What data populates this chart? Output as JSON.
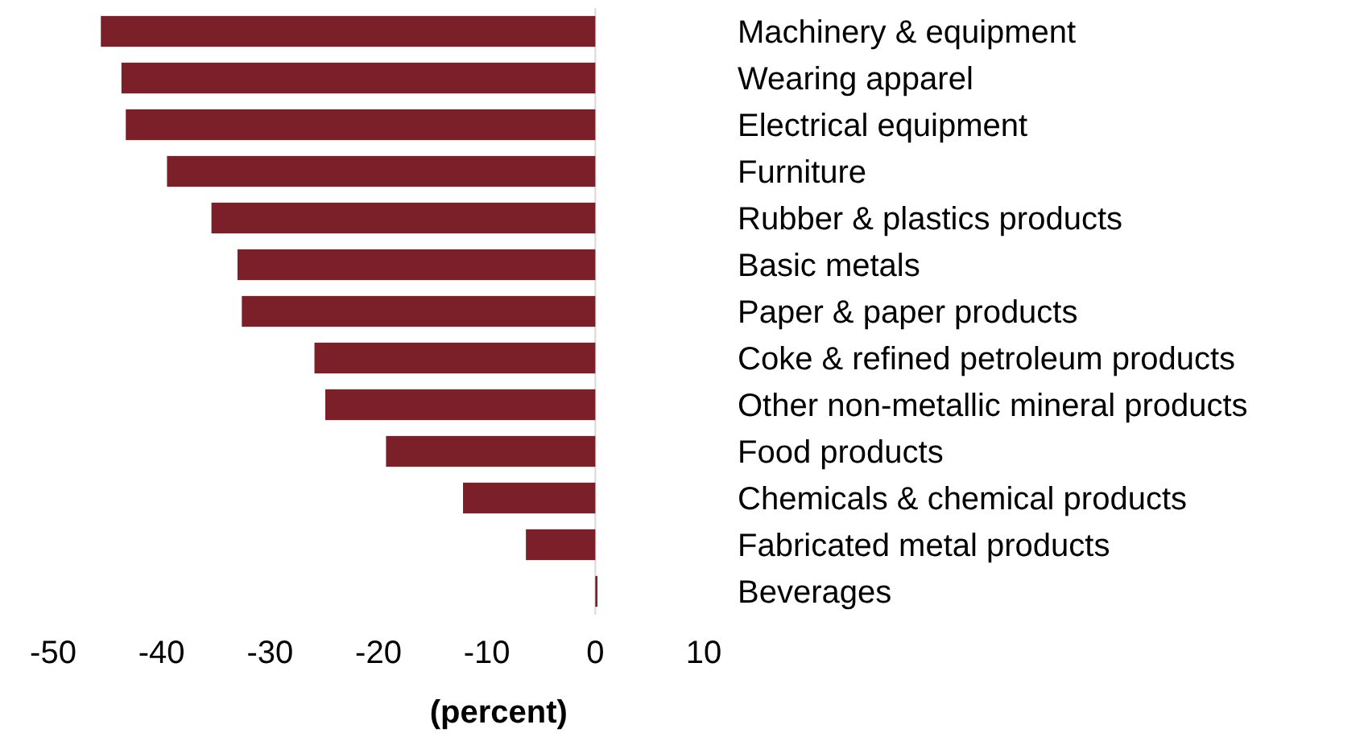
{
  "chart_data": {
    "type": "bar",
    "orientation": "horizontal",
    "xlabel": "(percent)",
    "categories": [
      "Machinery & equipment",
      "Wearing apparel",
      "Electrical equipment",
      "Furniture",
      "Rubber & plastics products",
      "Basic metals",
      "Paper & paper products",
      "Coke & refined petroleum products",
      "Other non-metallic mineral products",
      "Food products",
      "Chemicals & chemical products",
      "Fabricated metal products",
      "Beverages"
    ],
    "values": [
      -45.6,
      -43.7,
      -43.3,
      -39.5,
      -35.4,
      -33.0,
      -32.6,
      -25.9,
      -24.9,
      -19.3,
      -12.2,
      -6.4,
      0.2
    ],
    "color": "#7b2028",
    "xlim": [
      -50,
      10
    ],
    "xticks": [
      -50,
      -40,
      -30,
      -20,
      -10,
      0,
      10
    ]
  }
}
